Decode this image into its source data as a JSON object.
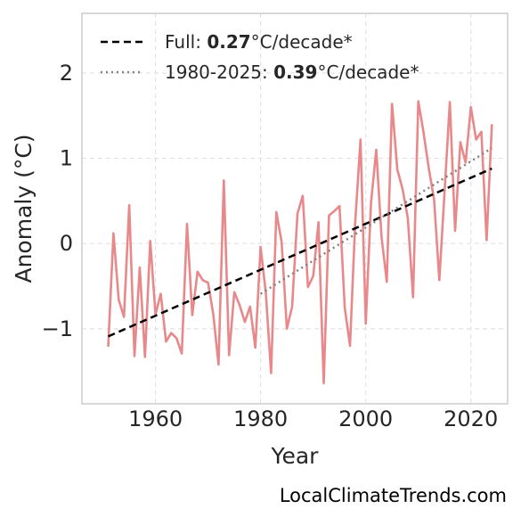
{
  "chart_data": {
    "type": "line",
    "xlabel": "Year",
    "ylabel": "Anomaly (°C)",
    "xlim": [
      1946,
      2027
    ],
    "ylim": [
      -1.88,
      2.7
    ],
    "xticks": [
      1960,
      1980,
      2000,
      2020
    ],
    "yticks": [
      -1,
      0,
      1,
      2
    ],
    "ytick_labels": [
      "−1",
      "0",
      "1",
      "2"
    ],
    "grid": true,
    "legend_placement": "top-left",
    "series": [
      {
        "style": "solid",
        "color": "#e8888a",
        "x": [
          1951,
          1952,
          1953,
          1954,
          1955,
          1956,
          1957,
          1958,
          1959,
          1960,
          1961,
          1962,
          1963,
          1964,
          1965,
          1966,
          1967,
          1968,
          1969,
          1970,
          1971,
          1972,
          1973,
          1974,
          1975,
          1976,
          1977,
          1978,
          1979,
          1980,
          1981,
          1982,
          1983,
          1984,
          1985,
          1986,
          1987,
          1988,
          1989,
          1990,
          1991,
          1992,
          1993,
          1994,
          1995,
          1996,
          1997,
          1998,
          1999,
          2000,
          2001,
          2002,
          2003,
          2004,
          2005,
          2006,
          2007,
          2008,
          2009,
          2010,
          2011,
          2012,
          2013,
          2014,
          2015,
          2016,
          2017,
          2018,
          2019,
          2020,
          2021,
          2022,
          2023,
          2024
        ],
        "y": [
          -1.21,
          0.12,
          -0.66,
          -0.86,
          0.45,
          -1.32,
          -0.28,
          -1.33,
          0.03,
          -0.83,
          -0.59,
          -1.15,
          -1.05,
          -1.11,
          -1.29,
          0.23,
          -0.84,
          -0.33,
          -0.43,
          -0.46,
          -0.83,
          -1.42,
          0.74,
          -1.31,
          -0.57,
          -0.72,
          -0.92,
          -0.74,
          -1.22,
          -0.04,
          -0.58,
          -1.52,
          0.37,
          0.02,
          -1.0,
          -0.74,
          0.35,
          0.56,
          -0.51,
          -0.38,
          0.25,
          -1.64,
          0.33,
          0.38,
          0.44,
          -0.75,
          -1.2,
          0.26,
          1.22,
          -0.94,
          0.48,
          1.1,
          0.08,
          -0.45,
          1.64,
          0.87,
          0.64,
          0.3,
          -0.63,
          1.67,
          1.3,
          0.88,
          0.52,
          -0.43,
          0.61,
          1.66,
          0.15,
          1.19,
          0.95,
          1.6,
          1.22,
          1.31,
          0.04,
          1.4
        ]
      },
      {
        "name": "Full",
        "style": "dashed",
        "color": "#000000",
        "trend_value": "0.27",
        "trend_unit": "°C/decade*",
        "x": [
          1951,
          2024
        ],
        "y": [
          -1.09,
          0.88
        ]
      },
      {
        "name": "1980-2025",
        "style": "dotted",
        "color": "#808080",
        "trend_value": "0.39",
        "trend_unit": "°C/decade*",
        "x": [
          1980,
          2024
        ],
        "y": [
          -0.59,
          1.12
        ]
      }
    ]
  },
  "footer": {
    "source": "LocalClimateTrends.com"
  }
}
